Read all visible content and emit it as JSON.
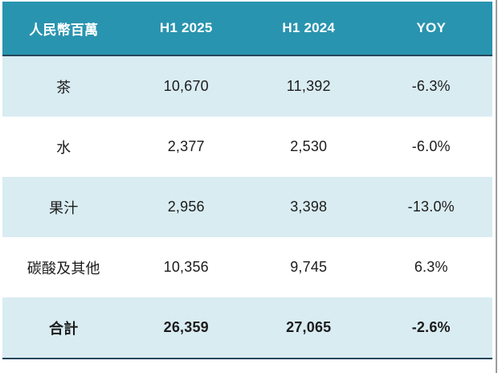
{
  "chart_data": {
    "type": "table",
    "title": "",
    "unit_label": "人民幣百萬",
    "columns": [
      "人民幣百萬",
      "H1 2025",
      "H1 2024",
      "YOY"
    ],
    "rows": [
      {
        "category": "茶",
        "h1_2025": "10,670",
        "h1_2024": "11,392",
        "yoy": "-6.3%"
      },
      {
        "category": "水",
        "h1_2025": "2,377",
        "h1_2024": "2,530",
        "yoy": "-6.0%"
      },
      {
        "category": "果汁",
        "h1_2025": "2,956",
        "h1_2024": "3,398",
        "yoy": "-13.0%"
      },
      {
        "category": "碳酸及其他",
        "h1_2025": "10,356",
        "h1_2024": "9,745",
        "yoy": "6.3%"
      },
      {
        "category": "合計",
        "h1_2025": "26,359",
        "h1_2024": "27,065",
        "yoy": "-2.6%"
      }
    ],
    "numeric": {
      "h1_2025": [
        10670,
        2377,
        2956,
        10356,
        26359
      ],
      "h1_2024": [
        11392,
        2530,
        3398,
        9745,
        27065
      ],
      "yoy_pct": [
        -6.3,
        -6.0,
        -13.0,
        6.3,
        -2.6
      ]
    },
    "layout_hints": {
      "striped_rows": "odd rows and total row shaded light blue",
      "total_row_bold": true,
      "alignment": "all columns centered"
    }
  },
  "colors": {
    "header_bg": "#2994af",
    "header_text": "#ffffff",
    "stripe_bg": "#d9ecf2",
    "plain_bg": "#ffffff",
    "dark_border": "#26465c",
    "body_text": "#1c1c1c",
    "right_edge_line": "#9c9c9c"
  }
}
